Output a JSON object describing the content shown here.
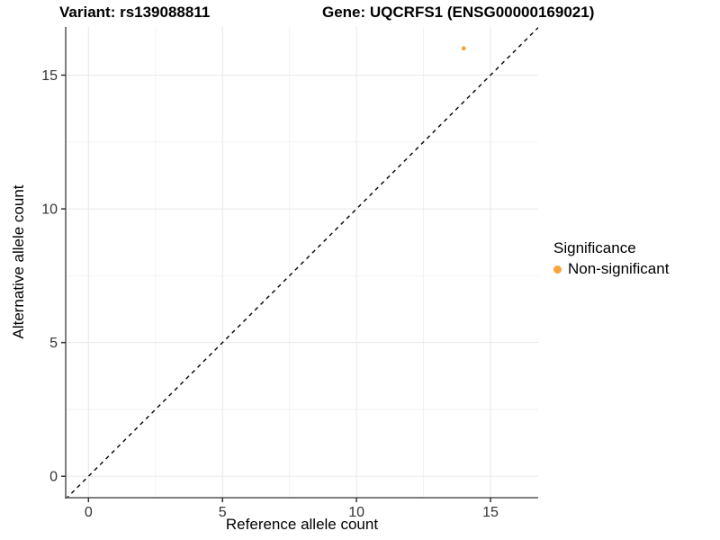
{
  "chart_data": {
    "type": "scatter",
    "titles": {
      "left": "Variant: rs139088811",
      "right": "Gene: UQCRFS1 (ENSG00000169021)"
    },
    "xlabel": "Reference allele count",
    "ylabel": "Alternative allele count",
    "x_ticks": [
      0,
      5,
      10,
      15
    ],
    "y_ticks": [
      0,
      5,
      10,
      15
    ],
    "x_minor_ticks": [
      2.5,
      7.5,
      12.5
    ],
    "y_minor_ticks": [
      2.5,
      7.5,
      12.5
    ],
    "xlim": [
      -0.85,
      16.78
    ],
    "ylim": [
      -0.8,
      16.8
    ],
    "grid": true,
    "points": [
      {
        "x": 14,
        "y": 16,
        "series": "Non-significant"
      }
    ],
    "reference_line": {
      "slope": 1,
      "intercept": 0,
      "style": "dashed",
      "color": "#000000"
    },
    "legend": {
      "title": "Significance",
      "position": "right",
      "items": [
        {
          "label": "Non-significant",
          "color": "#F9A43C"
        }
      ]
    },
    "colors": {
      "point": "#F9A43C",
      "grid_major": "#E8E8E8",
      "grid_minor": "#F2F2F2",
      "axis_line": "#555555",
      "tick_text": "#333333",
      "title_text": "#000000"
    }
  }
}
